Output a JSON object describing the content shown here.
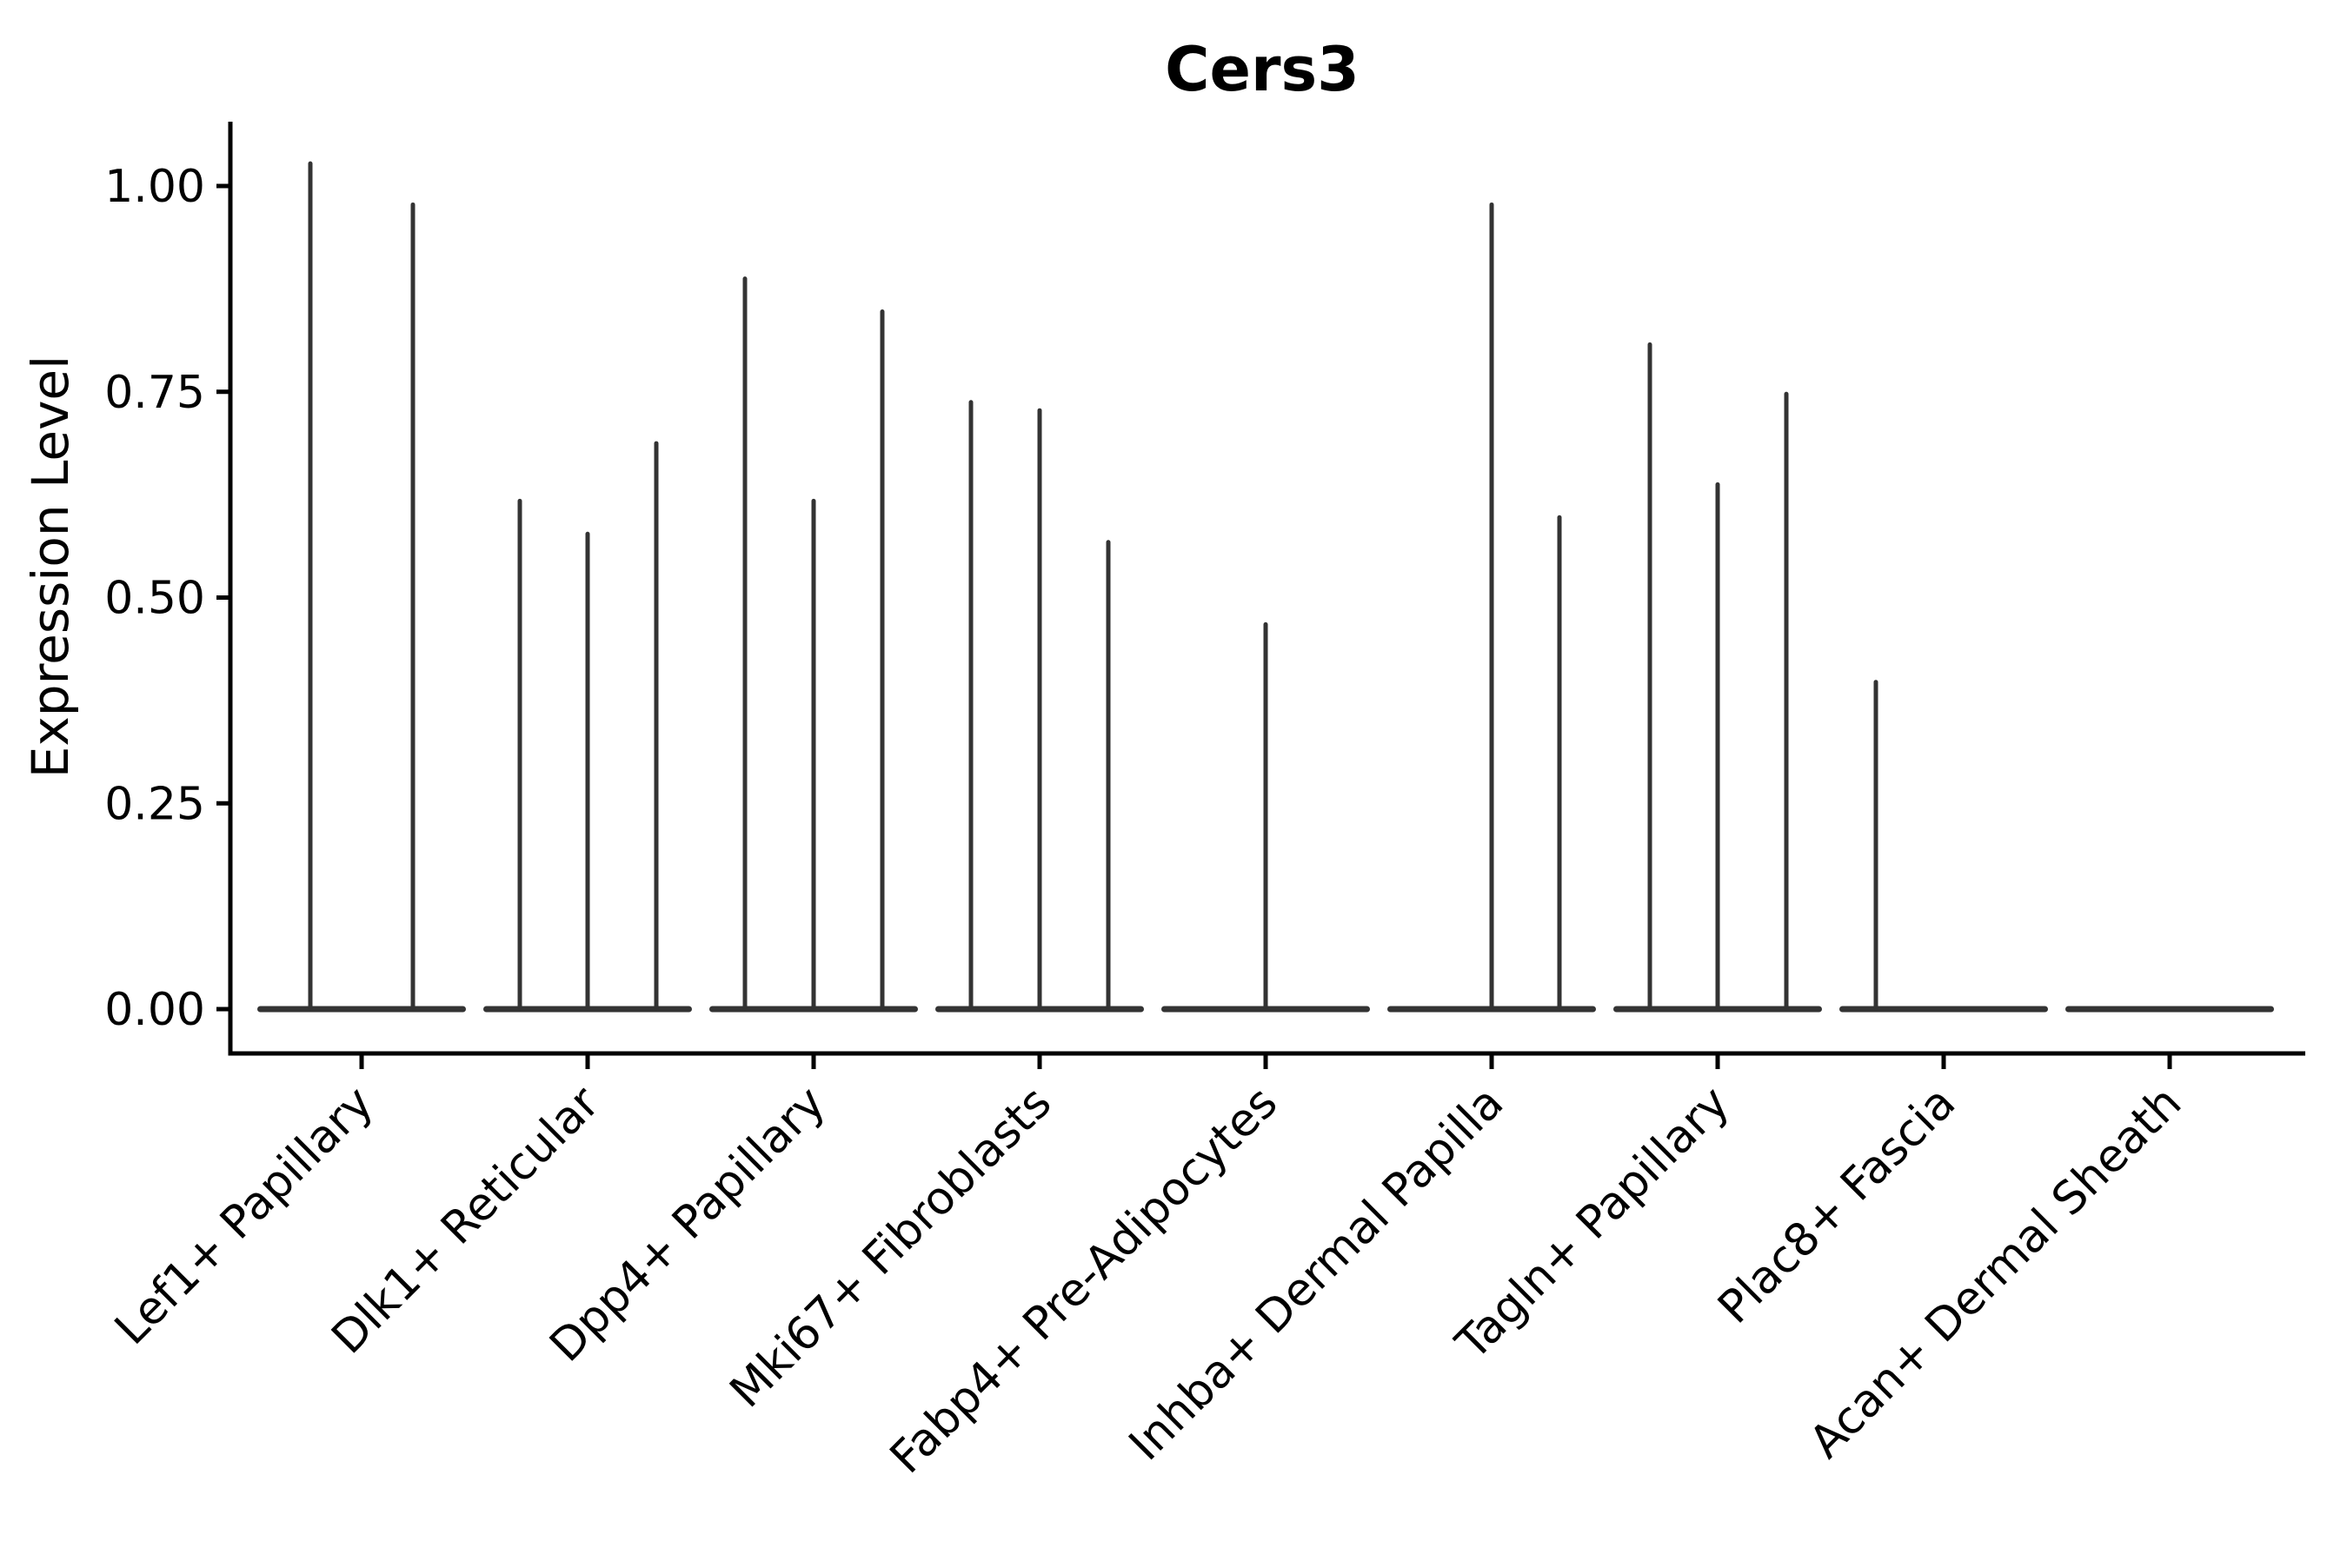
{
  "title": "Cers3",
  "y_axis": {
    "label": "Expression Level",
    "tick_labels": [
      "1.00",
      "0.75",
      "0.50",
      "0.25",
      "0.00"
    ],
    "tick_values": [
      1.0,
      0.75,
      0.5,
      0.25,
      0.0
    ]
  },
  "x_axis": {
    "categories": [
      "Lef1+ Papillary",
      "Dlk1+ Reticular",
      "Dpp4+ Papillary",
      "Mki67+ Fibroblasts",
      "Fabp4+ Pre-Adipocytes",
      "Inhba+ Dermal Papilla",
      "Tagln+ Papillary",
      "Plac8+ Fascia",
      "Acan+ Dermal Sheath"
    ]
  },
  "style": {
    "violin_color": "#333333",
    "axis_color": "#000000",
    "background": "#ffffff"
  },
  "chart_data": {
    "type": "violin",
    "title": "Cers3",
    "xlabel": "",
    "ylabel": "Expression Level",
    "ylim": [
      0,
      1.07
    ],
    "y_ticks": [
      0,
      0.25,
      0.5,
      0.75,
      1.0
    ],
    "grid": false,
    "legend": "none",
    "categories": [
      "Lef1+ Papillary",
      "Dlk1+ Reticular",
      "Dpp4+ Papillary",
      "Mki67+ Fibroblasts",
      "Fabp4+ Pre-Adipocytes",
      "Inhba+ Dermal Papilla",
      "Tagln+ Papillary",
      "Plac8+ Fascia",
      "Acan+ Dermal Sheath"
    ],
    "description": "Each category shows a flat violin baseline at expression 0 with thin density spikes reaching the maximum expression of sparse expressing cells; spike offsets are sub-violin positions (px) within the category slot.",
    "violins": [
      {
        "category": "Lef1+ Papillary",
        "baseline_value": 0,
        "spikes": [
          {
            "offset": -59,
            "max_expression": 1.03
          },
          {
            "offset": 59,
            "max_expression": 0.98
          }
        ]
      },
      {
        "category": "Dlk1+ Reticular",
        "baseline_value": 0,
        "spikes": [
          {
            "offset": -78,
            "max_expression": 0.62
          },
          {
            "offset": 0,
            "max_expression": 0.58
          },
          {
            "offset": 79,
            "max_expression": 0.69
          }
        ]
      },
      {
        "category": "Dpp4+ Papillary",
        "baseline_value": 0,
        "spikes": [
          {
            "offset": -79,
            "max_expression": 0.89
          },
          {
            "offset": 0,
            "max_expression": 0.62
          },
          {
            "offset": 79,
            "max_expression": 0.85
          }
        ]
      },
      {
        "category": "Mki67+ Fibroblasts",
        "baseline_value": 0,
        "spikes": [
          {
            "offset": -79,
            "max_expression": 0.74
          },
          {
            "offset": 0,
            "max_expression": 0.73
          },
          {
            "offset": 79,
            "max_expression": 0.57
          }
        ]
      },
      {
        "category": "Fabp4+ Pre-Adipocytes",
        "baseline_value": 0,
        "spikes": [
          {
            "offset": 0,
            "max_expression": 0.47
          }
        ]
      },
      {
        "category": "Inhba+ Dermal Papilla",
        "baseline_value": 0,
        "spikes": [
          {
            "offset": 0,
            "max_expression": 0.98
          },
          {
            "offset": 78,
            "max_expression": 0.6
          }
        ]
      },
      {
        "category": "Tagln+ Papillary",
        "baseline_value": 0,
        "spikes": [
          {
            "offset": -78,
            "max_expression": 0.81
          },
          {
            "offset": 0,
            "max_expression": 0.64
          },
          {
            "offset": 79,
            "max_expression": 0.75
          }
        ]
      },
      {
        "category": "Plac8+ Fascia",
        "baseline_value": 0,
        "spikes": [
          {
            "offset": -78,
            "max_expression": 0.4
          }
        ]
      },
      {
        "category": "Acan+ Dermal Sheath",
        "baseline_value": 0,
        "spikes": []
      }
    ]
  }
}
